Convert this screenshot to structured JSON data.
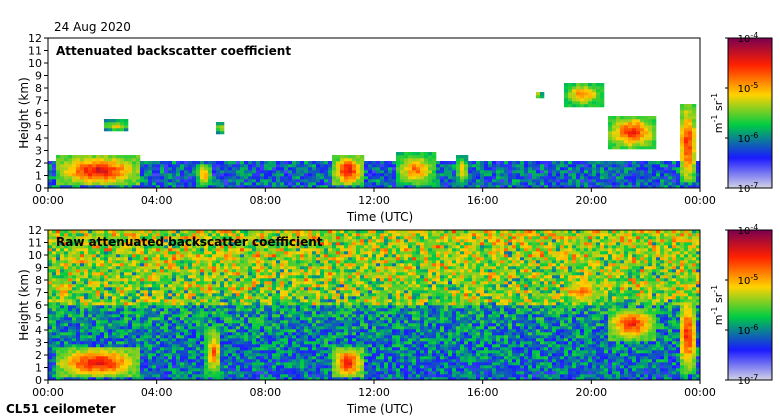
{
  "date_label": "24 Aug 2020",
  "instrument_label": "CL51 ceilometer",
  "colorscale": {
    "stops": [
      "#d3d3e6",
      "#1a1aff",
      "#00cc44",
      "#ffd200",
      "#ff2000",
      "#7a0050"
    ],
    "bg_color": "#d0d0e2"
  },
  "chart_data": [
    {
      "type": "heatmap",
      "title": "Attenuated backscatter coefficient",
      "xlabel": "Time (UTC)",
      "ylabel": "Height (km)",
      "xlim": [
        0,
        24
      ],
      "ylim": [
        0,
        12
      ],
      "x_ticks": [
        "00:00",
        "04:00",
        "08:00",
        "12:00",
        "16:00",
        "20:00",
        "00:00"
      ],
      "y_ticks": [
        "0",
        "1",
        "2",
        "3",
        "4",
        "5",
        "6",
        "7",
        "8",
        "9",
        "10",
        "11",
        "12"
      ],
      "colorbar": {
        "label_main": "m",
        "label_sup1": "-1",
        "label_mid": " sr",
        "label_sup2": "-1",
        "ticks": [
          {
            "base": "10",
            "exp": "-4"
          },
          {
            "base": "10",
            "exp": "-5"
          },
          {
            "base": "10",
            "exp": "-6"
          },
          {
            "base": "10",
            "exp": "-7"
          }
        ]
      },
      "noise_top_km": 2.2,
      "features": [
        {
          "t0": 0.3,
          "t1": 3.4,
          "h0": 0.2,
          "h1": 2.6,
          "level": 0.85
        },
        {
          "t0": 2.0,
          "t1": 3.0,
          "h0": 4.6,
          "h1": 5.4,
          "level": 0.6
        },
        {
          "t0": 5.5,
          "t1": 6.0,
          "h0": 0.2,
          "h1": 2.0,
          "level": 0.7
        },
        {
          "t0": 6.2,
          "t1": 6.5,
          "h0": 4.4,
          "h1": 5.2,
          "level": 0.6
        },
        {
          "t0": 10.5,
          "t1": 11.6,
          "h0": 0.2,
          "h1": 2.6,
          "level": 0.85
        },
        {
          "t0": 12.8,
          "t1": 14.3,
          "h0": 0.2,
          "h1": 2.8,
          "level": 0.7
        },
        {
          "t0": 15.0,
          "t1": 15.5,
          "h0": 0.3,
          "h1": 2.6,
          "level": 0.6
        },
        {
          "t0": 17.9,
          "t1": 18.2,
          "h0": 7.2,
          "h1": 7.8,
          "level": 0.6
        },
        {
          "t0": 19.0,
          "t1": 20.4,
          "h0": 6.6,
          "h1": 8.4,
          "level": 0.7
        },
        {
          "t0": 20.6,
          "t1": 22.4,
          "h0": 3.2,
          "h1": 5.8,
          "level": 0.8
        },
        {
          "t0": 23.2,
          "t1": 23.9,
          "h0": 0.4,
          "h1": 6.8,
          "level": 0.8
        }
      ]
    },
    {
      "type": "heatmap",
      "title": "Raw attenuated backscatter coefficient",
      "xlabel": "Time (UTC)",
      "ylabel": "Height (km)",
      "xlim": [
        0,
        24
      ],
      "ylim": [
        0,
        12
      ],
      "x_ticks": [
        "00:00",
        "04:00",
        "08:00",
        "12:00",
        "16:00",
        "20:00",
        "00:00"
      ],
      "y_ticks": [
        "0",
        "1",
        "2",
        "3",
        "4",
        "5",
        "6",
        "7",
        "8",
        "9",
        "10",
        "11",
        "12"
      ],
      "colorbar": {
        "label_main": "m",
        "label_sup1": "-1",
        "label_mid": " sr",
        "label_sup2": "-1",
        "ticks": [
          {
            "base": "10",
            "exp": "-4"
          },
          {
            "base": "10",
            "exp": "-5"
          },
          {
            "base": "10",
            "exp": "-6"
          },
          {
            "base": "10",
            "exp": "-7"
          }
        ]
      },
      "noise_top_km": 12,
      "features": [
        {
          "t0": 0.3,
          "t1": 3.4,
          "h0": 0.2,
          "h1": 2.6,
          "level": 0.85
        },
        {
          "t0": 5.8,
          "t1": 6.4,
          "h0": 0.2,
          "h1": 4.4,
          "level": 0.7
        },
        {
          "t0": 10.5,
          "t1": 11.6,
          "h0": 0.2,
          "h1": 2.6,
          "level": 0.85
        },
        {
          "t0": 19.0,
          "t1": 20.4,
          "h0": 6.0,
          "h1": 8.2,
          "level": 0.7
        },
        {
          "t0": 20.6,
          "t1": 22.4,
          "h0": 3.2,
          "h1": 5.8,
          "level": 0.8
        },
        {
          "t0": 23.2,
          "t1": 23.9,
          "h0": 0.4,
          "h1": 6.8,
          "level": 0.8
        }
      ]
    }
  ]
}
